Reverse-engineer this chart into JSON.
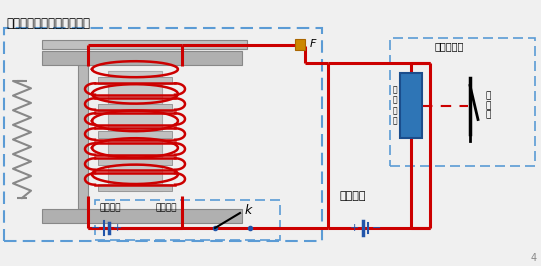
{
  "title": "中间继电器（出口继电器）",
  "label_baohuhuilv": "保护回路",
  "label_baohuzhuangzhi": "保护装置",
  "label_k": "k",
  "label_F": "F",
  "label_kongzhihuilv": "控制回路",
  "label_duanlujigou": "断路器机构",
  "label_fenjianxianzhen": "分\n闸\n线\n圈",
  "label_duanluqi": "断\n路\n器",
  "label_minus1": "－",
  "label_plus1": "＋",
  "label_plus2": "＋",
  "label_minus2": "－",
  "bg_color": "#ececec",
  "wire_color": "#cc0000",
  "dashed_color": "#5b9bd5",
  "gray_metal": "#a0a0a0",
  "gray_light": "#d0d0d0",
  "blue_coil": "#2e75b6",
  "fig_w": 5.41,
  "fig_h": 2.66,
  "dpi": 100
}
